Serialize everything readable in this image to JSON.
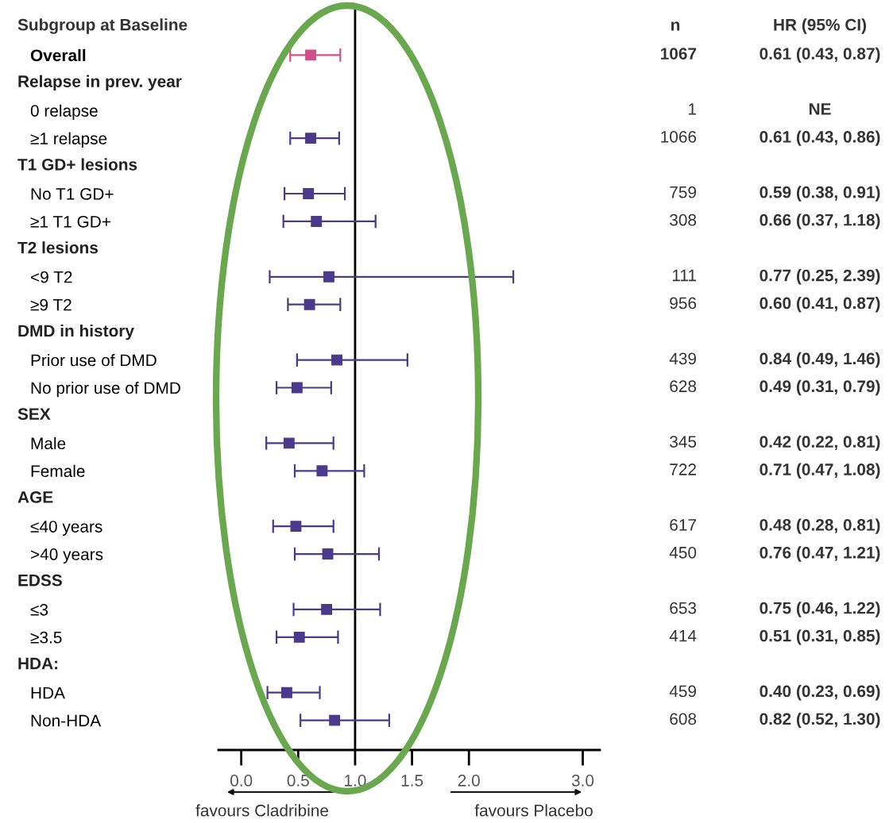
{
  "chart_data": {
    "type": "scatter",
    "orientation": "horizontal",
    "categories": [
      "Overall",
      null,
      "0 relapse",
      "≥1 relapse",
      null,
      "No T1 GD+",
      "≥1 T1 GD+",
      null,
      "<9 T2",
      "≥9 T2",
      null,
      "Prior use of DMD",
      "No prior use of DMD",
      null,
      "Male",
      "Female",
      null,
      "≤40 years",
      ">40 years",
      null,
      "≤3",
      "≥3.5",
      null,
      "HDA",
      "Non-HDA"
    ],
    "series": [
      {
        "marker": "square",
        "colors": [
          "#d0508a",
          null,
          null,
          "#4b3a8c",
          null,
          "#4b3a8c",
          "#4b3a8c",
          null,
          "#4b3a8c",
          "#4b3a8c",
          null,
          "#4b3a8c",
          "#4b3a8c",
          null,
          "#4b3a8c",
          "#4b3a8c",
          null,
          "#4b3a8c",
          "#4b3a8c",
          null,
          "#4b3a8c",
          "#4b3a8c",
          null,
          "#4b3a8c",
          "#4b3a8c"
        ],
        "values": [
          0.61,
          null,
          null,
          0.61,
          null,
          0.59,
          0.66,
          null,
          0.77,
          0.6,
          null,
          0.84,
          0.49,
          null,
          0.42,
          0.71,
          null,
          0.48,
          0.76,
          null,
          0.75,
          0.51,
          null,
          0.4,
          0.82
        ],
        "errors": [
          [
            0.43,
            0.87
          ],
          null,
          null,
          [
            0.43,
            0.86
          ],
          null,
          [
            0.38,
            0.91
          ],
          [
            0.37,
            1.18
          ],
          null,
          [
            0.25,
            2.39
          ],
          [
            0.41,
            0.87
          ],
          null,
          [
            0.49,
            1.46
          ],
          [
            0.31,
            0.79
          ],
          null,
          [
            0.22,
            0.81
          ],
          [
            0.47,
            1.08
          ],
          null,
          [
            0.28,
            0.81
          ],
          [
            0.47,
            1.21
          ],
          null,
          [
            0.46,
            1.22
          ],
          [
            0.31,
            0.85
          ],
          null,
          [
            0.23,
            0.69
          ],
          [
            0.52,
            1.3
          ]
        ],
        "value_labels": [
          "0.61 (0.43, 0.87)",
          null,
          "NE",
          "0.61 (0.43, 0.86)",
          null,
          "0.59 (0.38, 0.91)",
          "0.66 (0.37, 1.18)",
          null,
          "0.77 (0.25, 2.39)",
          "0.60 (0.41, 0.87)",
          null,
          "0.84 (0.49, 1.46)",
          "0.49 (0.31, 0.79)",
          null,
          "0.42 (0.22, 0.81)",
          "0.71 (0.47, 1.08)",
          null,
          "0.48 (0.28, 0.81)",
          "0.76 (0.47, 1.21)",
          null,
          "0.75 (0.46, 1.22)",
          "0.51 (0.31, 0.85)",
          null,
          "0.40 (0.23, 0.69)",
          "0.82 (0.52, 1.30)"
        ]
      }
    ],
    "xlim": [
      -0.2,
      3.15
    ],
    "xticks": [
      {
        "value": 0,
        "label": "0.0"
      },
      0.5,
      {
        "value": 1,
        "label": "1.0"
      },
      1.5,
      {
        "value": 2,
        "label": "2.0"
      },
      {
        "value": 3,
        "label": "3.0"
      }
    ],
    "ref_lines": [
      {
        "axis": "x",
        "value": 1,
        "color": "#000000"
      }
    ],
    "grid": false,
    "annotations": [
      "Subgroup at Baseline",
      "n",
      "HR (95% CI)",
      "favours Cladribine",
      "favours Placebo",
      "Relapse in prev. year",
      "T1 GD+ lesions",
      "T2 lesions",
      "DMD in history",
      "SEX",
      "AGE",
      "EDSS",
      "HDA:",
      "1067",
      "1",
      "1066",
      "759",
      "308",
      "111",
      "956",
      "439",
      "628",
      "345",
      "722",
      "617",
      "450",
      "653",
      "414",
      "459",
      "608"
    ]
  }
}
